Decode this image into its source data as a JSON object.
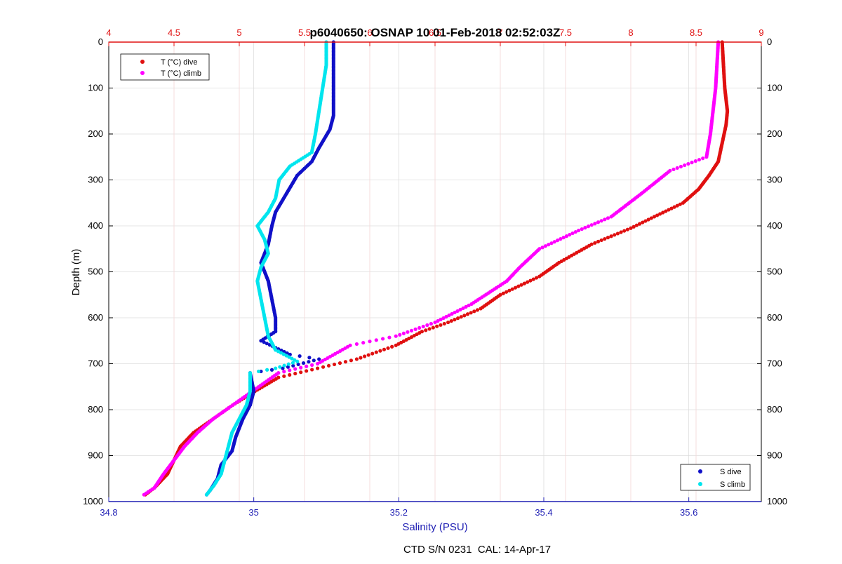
{
  "chart_data": {
    "type": "scatter",
    "title": "p6040650: OSNAP 10 01-Feb-2018 02:52:03Z",
    "footer": "CTD S/N 0231  CAL: 14-Apr-17",
    "y_axis": {
      "label": "Depth (m)",
      "range": [
        0,
        1000
      ],
      "reversed": true,
      "ticks": [
        0,
        100,
        200,
        300,
        400,
        500,
        600,
        700,
        800,
        900,
        1000
      ]
    },
    "x_axis_bottom": {
      "label": "Salinity (PSU)",
      "range": [
        34.8,
        35.7
      ],
      "ticks": [
        34.8,
        35,
        35.2,
        35.4,
        35.6
      ],
      "tick_labels": [
        "34.8",
        "35",
        "35.2",
        "35.4",
        "35.6"
      ],
      "color": "#1f1fb4"
    },
    "x_axis_top": {
      "range": [
        4,
        9
      ],
      "ticks": [
        4,
        4.5,
        5,
        5.5,
        6,
        6.5,
        7,
        7.5,
        8,
        8.5,
        9
      ],
      "tick_labels": [
        "4",
        "4.5",
        "5",
        "5.5",
        "6",
        "6.5",
        "7",
        "7.5",
        "8",
        "8.5",
        "9"
      ],
      "color": "#e01010"
    },
    "grid": true,
    "legends": [
      {
        "position": "top-left",
        "entries": [
          {
            "label": "T (°C) dive",
            "color": "#e01010"
          },
          {
            "label": "T (°C) climb",
            "color": "#ff00ff"
          }
        ]
      },
      {
        "position": "bottom-right",
        "entries": [
          {
            "label": "S dive",
            "color": "#1010c8"
          },
          {
            "label": "S climb",
            "color": "#00e5ee"
          }
        ]
      }
    ],
    "series": [
      {
        "name": "T (°C) dive",
        "axis": "top",
        "color": "#e01010",
        "points": [
          [
            8.7,
            0
          ],
          [
            8.71,
            50
          ],
          [
            8.72,
            100
          ],
          [
            8.74,
            150
          ],
          [
            8.73,
            180
          ],
          [
            8.7,
            220
          ],
          [
            8.67,
            260
          ],
          [
            8.6,
            290
          ],
          [
            8.52,
            320
          ],
          [
            8.4,
            350
          ],
          [
            8.18,
            380
          ],
          [
            8.0,
            405
          ],
          [
            7.7,
            440
          ],
          [
            7.45,
            480
          ],
          [
            7.3,
            510
          ],
          [
            7.0,
            550
          ],
          [
            6.85,
            580
          ],
          [
            6.6,
            610
          ],
          [
            6.4,
            630
          ],
          [
            6.2,
            660
          ],
          [
            5.9,
            690
          ],
          [
            5.6,
            710
          ],
          [
            5.3,
            730
          ],
          [
            5.12,
            760
          ],
          [
            4.95,
            790
          ],
          [
            4.8,
            820
          ],
          [
            4.65,
            850
          ],
          [
            4.55,
            880
          ],
          [
            4.5,
            910
          ],
          [
            4.45,
            940
          ],
          [
            4.35,
            970
          ],
          [
            4.28,
            985
          ]
        ]
      },
      {
        "name": "T (°C) climb",
        "axis": "top",
        "color": "#ff00ff",
        "points": [
          [
            8.67,
            0
          ],
          [
            8.66,
            50
          ],
          [
            8.65,
            100
          ],
          [
            8.63,
            150
          ],
          [
            8.61,
            200
          ],
          [
            8.58,
            250
          ],
          [
            8.3,
            280
          ],
          [
            8.08,
            330
          ],
          [
            7.85,
            380
          ],
          [
            7.6,
            410
          ],
          [
            7.3,
            450
          ],
          [
            7.15,
            490
          ],
          [
            7.05,
            520
          ],
          [
            6.78,
            570
          ],
          [
            6.5,
            610
          ],
          [
            6.2,
            640
          ],
          [
            5.85,
            660
          ],
          [
            5.6,
            700
          ],
          [
            5.3,
            720
          ],
          [
            5.1,
            760
          ],
          [
            4.95,
            790
          ],
          [
            4.8,
            820
          ],
          [
            4.68,
            850
          ],
          [
            4.58,
            880
          ],
          [
            4.5,
            910
          ],
          [
            4.42,
            940
          ],
          [
            4.35,
            970
          ],
          [
            4.27,
            985
          ]
        ]
      },
      {
        "name": "S dive",
        "axis": "bottom",
        "color": "#1010c8",
        "points": [
          [
            35.11,
            0
          ],
          [
            35.11,
            50
          ],
          [
            35.11,
            100
          ],
          [
            35.11,
            160
          ],
          [
            35.105,
            190
          ],
          [
            35.09,
            230
          ],
          [
            35.08,
            260
          ],
          [
            35.06,
            290
          ],
          [
            35.045,
            330
          ],
          [
            35.03,
            370
          ],
          [
            35.025,
            400
          ],
          [
            35.02,
            440
          ],
          [
            35.01,
            480
          ],
          [
            35.02,
            520
          ],
          [
            35.025,
            560
          ],
          [
            35.03,
            600
          ],
          [
            35.03,
            630
          ],
          [
            35.01,
            650
          ],
          [
            35.05,
            680
          ],
          [
            35.09,
            690
          ],
          [
            35.04,
            710
          ],
          [
            34.995,
            720
          ],
          [
            35.0,
            760
          ],
          [
            34.995,
            790
          ],
          [
            34.985,
            820
          ],
          [
            34.975,
            860
          ],
          [
            34.97,
            890
          ],
          [
            34.955,
            920
          ],
          [
            34.95,
            950
          ],
          [
            34.94,
            975
          ],
          [
            34.935,
            985
          ]
        ]
      },
      {
        "name": "S climb",
        "axis": "bottom",
        "color": "#00e5ee",
        "points": [
          [
            35.1,
            0
          ],
          [
            35.1,
            50
          ],
          [
            35.095,
            100
          ],
          [
            35.09,
            150
          ],
          [
            35.085,
            200
          ],
          [
            35.08,
            240
          ],
          [
            35.05,
            270
          ],
          [
            35.035,
            300
          ],
          [
            35.03,
            340
          ],
          [
            35.02,
            370
          ],
          [
            35.005,
            400
          ],
          [
            35.015,
            430
          ],
          [
            35.02,
            460
          ],
          [
            35.01,
            490
          ],
          [
            35.005,
            520
          ],
          [
            35.01,
            560
          ],
          [
            35.015,
            600
          ],
          [
            35.02,
            640
          ],
          [
            35.03,
            670
          ],
          [
            35.06,
            695
          ],
          [
            35.03,
            710
          ],
          [
            34.995,
            720
          ],
          [
            34.995,
            760
          ],
          [
            34.99,
            790
          ],
          [
            34.98,
            820
          ],
          [
            34.97,
            850
          ],
          [
            34.965,
            880
          ],
          [
            34.96,
            910
          ],
          [
            34.955,
            940
          ],
          [
            34.945,
            965
          ],
          [
            34.935,
            985
          ]
        ]
      }
    ]
  }
}
